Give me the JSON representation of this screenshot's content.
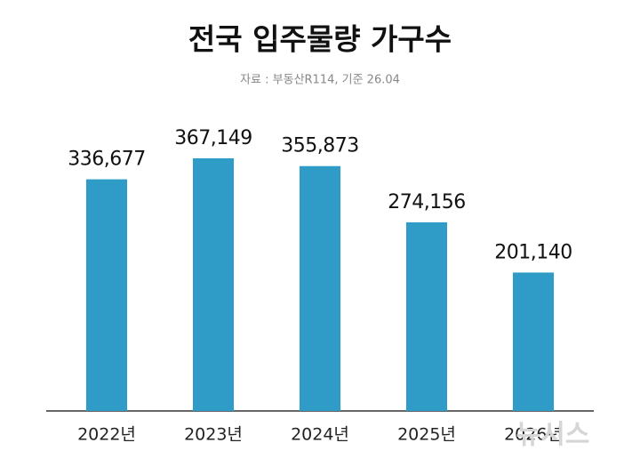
{
  "chart_data": {
    "type": "bar",
    "title": "전국 입주물량 가구수",
    "subtitle": "자료 : 부동산R114, 기준 26.04",
    "categories": [
      "2022년",
      "2023년",
      "2024년",
      "2025년",
      "2026년"
    ],
    "values": [
      336677,
      367149,
      355873,
      274156,
      201140
    ],
    "value_labels": [
      "336,677",
      "367,149",
      "355,873",
      "274,156",
      "201,140"
    ],
    "color": "#2e9cc6",
    "watermark": "뉴시스"
  }
}
